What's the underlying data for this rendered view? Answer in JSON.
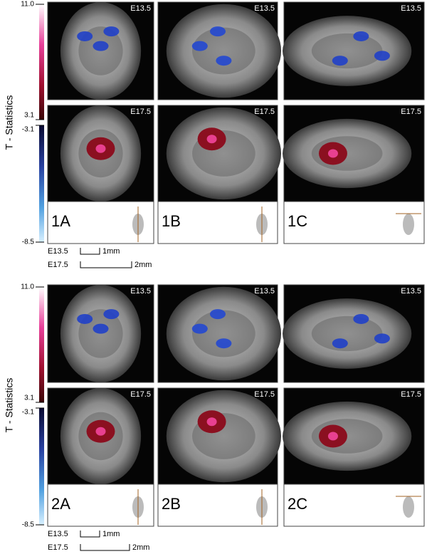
{
  "figures": [
    {
      "colorbar": {
        "label": "T - Statistics",
        "ticks": [
          "11.0",
          "3.1",
          "-3.1",
          "-8.5"
        ]
      },
      "panels": [
        {
          "id": "1A",
          "top_stage": "E13.5",
          "bottom_stage": "E17.5"
        },
        {
          "id": "1B",
          "top_stage": "E13.5",
          "bottom_stage": "E17.5"
        },
        {
          "id": "1C",
          "top_stage": "E13.5",
          "bottom_stage": "E17.5"
        }
      ],
      "scale_bars": [
        {
          "stage": "E13.5",
          "length": "1mm"
        },
        {
          "stage": "E17.5",
          "length": "2mm"
        }
      ]
    },
    {
      "colorbar": {
        "label": "T - Statistics",
        "ticks": [
          "11.0",
          "3.1",
          "-3.1",
          "-8.5"
        ]
      },
      "panels": [
        {
          "id": "2A",
          "top_stage": "E13.5",
          "bottom_stage": "E17.5"
        },
        {
          "id": "2B",
          "top_stage": "E13.5",
          "bottom_stage": "E17.5"
        },
        {
          "id": "2C",
          "top_stage": "E13.5",
          "bottom_stage": "E17.5"
        }
      ],
      "scale_bars": [
        {
          "stage": "E13.5",
          "length": "1mm"
        },
        {
          "stage": "E17.5",
          "length": "2mm"
        }
      ]
    }
  ]
}
